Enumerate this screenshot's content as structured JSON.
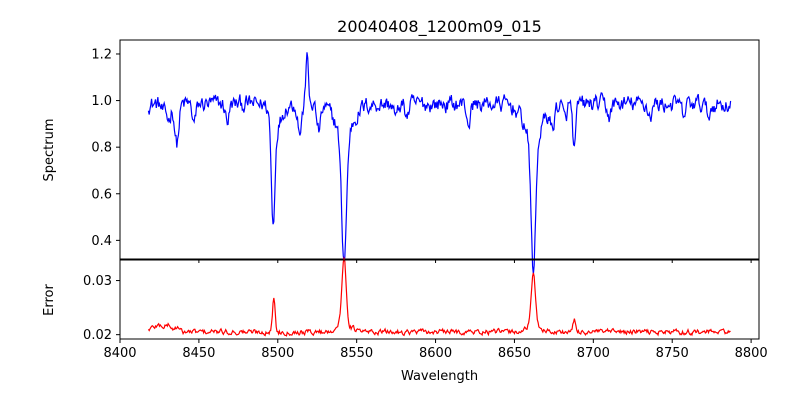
{
  "chart_data": [
    {
      "type": "line",
      "title": "20040408_1200m09_015",
      "xlabel": "",
      "ylabel": "Spectrum",
      "xlim": [
        8400,
        8805
      ],
      "ylim": [
        0.32,
        1.26
      ],
      "xticks": [
        8400,
        8450,
        8500,
        8550,
        8600,
        8650,
        8700,
        8750,
        8800
      ],
      "yticks": [
        0.4,
        0.6,
        0.8,
        1.0,
        1.2
      ],
      "ytick_labels": [
        "0.4",
        "0.6",
        "0.8",
        "1.0",
        "1.2"
      ],
      "show_xtick_labels": false,
      "grid": false,
      "series": [
        {
          "color": "#0000ff",
          "continuum": 0.985,
          "x_range": [
            8418,
            8787
          ],
          "noise": 0.03,
          "features": [
            {
              "x": 8428,
              "depth": 0.04,
              "width": 1.5
            },
            {
              "x": 8431,
              "depth": 0.06,
              "width": 1.2
            },
            {
              "x": 8436,
              "depth": 0.17,
              "width": 1.3
            },
            {
              "x": 8447,
              "depth": 0.08,
              "width": 1.2
            },
            {
              "x": 8468,
              "depth": 0.07,
              "width": 1.2
            },
            {
              "x": 8497,
              "depth": 0.44,
              "width": 1.1
            },
            {
              "x": 8499,
              "depth": 0.1,
              "width": 3.0
            },
            {
              "x": 8514,
              "depth": 0.12,
              "width": 1.2
            },
            {
              "x": 8518.5,
              "depth": -0.24,
              "width": 0.7
            },
            {
              "x": 8526,
              "depth": 0.11,
              "width": 1.3
            },
            {
              "x": 8542,
              "depth": 0.55,
              "width": 1.6
            },
            {
              "x": 8542,
              "depth": 0.12,
              "width": 6.0
            },
            {
              "x": 8575,
              "depth": 0.06,
              "width": 1.2
            },
            {
              "x": 8582,
              "depth": 0.05,
              "width": 1.2
            },
            {
              "x": 8621,
              "depth": 0.08,
              "width": 1.2
            },
            {
              "x": 8662,
              "depth": 0.57,
              "width": 1.5
            },
            {
              "x": 8662,
              "depth": 0.14,
              "width": 6.0
            },
            {
              "x": 8674,
              "depth": 0.09,
              "width": 1.2
            },
            {
              "x": 8682,
              "depth": 0.07,
              "width": 1.2
            },
            {
              "x": 8688,
              "depth": 0.2,
              "width": 1.0
            },
            {
              "x": 8710,
              "depth": 0.05,
              "width": 1.2
            },
            {
              "x": 8736,
              "depth": 0.05,
              "width": 1.2
            },
            {
              "x": 8757,
              "depth": 0.05,
              "width": 1.2
            },
            {
              "x": 8773,
              "depth": 0.05,
              "width": 1.2
            }
          ]
        }
      ]
    },
    {
      "type": "line",
      "title": "",
      "xlabel": "Wavelength",
      "ylabel": "Error",
      "xlim": [
        8400,
        8805
      ],
      "ylim": [
        0.0192,
        0.0338
      ],
      "xticks": [
        8400,
        8450,
        8500,
        8550,
        8600,
        8650,
        8700,
        8750,
        8800
      ],
      "xtick_labels": [
        "8400",
        "8450",
        "8500",
        "8550",
        "8600",
        "8650",
        "8700",
        "8750",
        "8800"
      ],
      "yticks": [
        0.02,
        0.03
      ],
      "ytick_labels": [
        "0.02",
        "0.03"
      ],
      "grid": false,
      "series": [
        {
          "color": "#ff0000",
          "continuum": 0.0205,
          "x_range": [
            8418,
            8787
          ],
          "noise": 0.0004,
          "features": [
            {
              "x": 8425,
              "amp": 0.0012,
              "width": 5.0
            },
            {
              "x": 8431,
              "amp": 0.0008,
              "width": 1.2
            },
            {
              "x": 8436,
              "amp": 0.0008,
              "width": 1.2
            },
            {
              "x": 8497.5,
              "amp": 0.0065,
              "width": 0.8
            },
            {
              "x": 8542,
              "amp": 0.0125,
              "width": 1.3
            },
            {
              "x": 8542,
              "amp": 0.0015,
              "width": 4.5
            },
            {
              "x": 8662,
              "amp": 0.0093,
              "width": 1.3
            },
            {
              "x": 8662,
              "amp": 0.0012,
              "width": 4.5
            },
            {
              "x": 8688,
              "amp": 0.002,
              "width": 0.9
            }
          ]
        }
      ]
    }
  ]
}
